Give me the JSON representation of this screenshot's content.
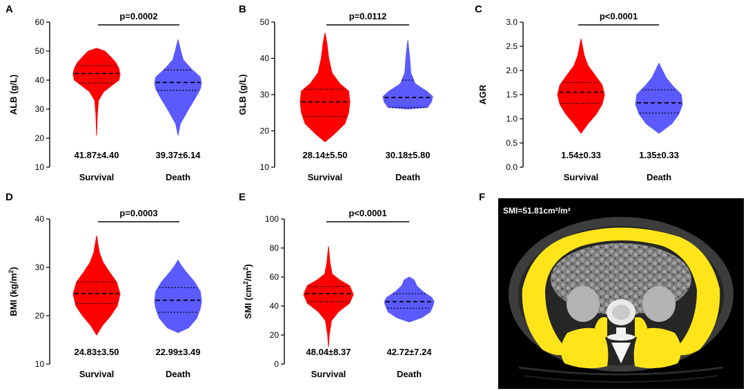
{
  "categories": [
    "Survival",
    "Death"
  ],
  "colors": {
    "survival": "#ff0000",
    "death": "#5a5aff",
    "muscle": "#ffe419"
  },
  "chart_data": [
    {
      "panel": "A",
      "type": "violin",
      "ylabel_main": "ALB (g/L)",
      "ylabel_sup": "",
      "ylabel_end": "",
      "ylim": [
        10,
        60
      ],
      "yticks": [
        10,
        20,
        30,
        40,
        50,
        60
      ],
      "tick_decimals": 0,
      "p_value": "p=0.0002",
      "series": [
        {
          "name": "Survival",
          "stat": "41.87±4.40",
          "min": 21,
          "q1": 39,
          "median": 42.3,
          "q3": 45,
          "max": 51,
          "width_profile": [
            [
              21,
              0
            ],
            [
              28,
              0.03
            ],
            [
              33,
              0.08
            ],
            [
              36,
              0.3
            ],
            [
              38,
              0.62
            ],
            [
              40,
              0.95
            ],
            [
              42,
              1
            ],
            [
              44,
              0.95
            ],
            [
              46,
              0.82
            ],
            [
              48,
              0.6
            ],
            [
              50,
              0.35
            ],
            [
              51,
              0
            ]
          ]
        },
        {
          "name": "Death",
          "stat": "39.37±6.14",
          "min": 21,
          "q1": 36.5,
          "median": 39.2,
          "q3": 43.5,
          "max": 54,
          "width_profile": [
            [
              21,
              0
            ],
            [
              25,
              0.1
            ],
            [
              30,
              0.45
            ],
            [
              34,
              0.75
            ],
            [
              37,
              0.95
            ],
            [
              39,
              1
            ],
            [
              41,
              0.95
            ],
            [
              44,
              0.55
            ],
            [
              47,
              0.22
            ],
            [
              50,
              0.12
            ],
            [
              54,
              0
            ]
          ]
        }
      ]
    },
    {
      "panel": "B",
      "type": "violin",
      "ylabel_main": "GLB (g/L)",
      "ylabel_sup": "",
      "ylabel_end": "",
      "ylim": [
        10,
        50
      ],
      "yticks": [
        10,
        20,
        30,
        40,
        50
      ],
      "tick_decimals": 0,
      "p_value": "p=0.0112",
      "series": [
        {
          "name": "Survival",
          "stat": "28.14±5.50",
          "min": 17,
          "q1": 24,
          "median": 28,
          "q3": 31.5,
          "max": 47,
          "width_profile": [
            [
              17,
              0
            ],
            [
              19,
              0.35
            ],
            [
              22,
              0.8
            ],
            [
              25,
              0.95
            ],
            [
              28,
              1
            ],
            [
              31,
              0.95
            ],
            [
              33,
              0.6
            ],
            [
              36,
              0.28
            ],
            [
              40,
              0.15
            ],
            [
              44,
              0.08
            ],
            [
              47,
              0
            ]
          ]
        },
        {
          "name": "Death",
          "stat": "30.18±5.80",
          "min": 26,
          "q1": 26.5,
          "median": 29.2,
          "q3": 34,
          "max": 45,
          "width_profile": [
            [
              26,
              0
            ],
            [
              26.5,
              0.8
            ],
            [
              28,
              0.95
            ],
            [
              29.5,
              1
            ],
            [
              31,
              0.75
            ],
            [
              33,
              0.3
            ],
            [
              36,
              0.12
            ],
            [
              40,
              0.08
            ],
            [
              45,
              0
            ]
          ]
        }
      ]
    },
    {
      "panel": "C",
      "type": "violin",
      "ylabel_main": "AGR",
      "ylabel_sup": "",
      "ylabel_end": "",
      "ylim": [
        0,
        3
      ],
      "yticks": [
        0,
        0.5,
        1,
        1.5,
        2,
        2.5,
        3
      ],
      "tick_decimals": 1,
      "p_value": "p<0.0001",
      "series": [
        {
          "name": "Survival",
          "stat": "1.54±0.33",
          "min": 0.7,
          "q1": 1.32,
          "median": 1.55,
          "q3": 1.75,
          "max": 2.65,
          "width_profile": [
            [
              0.7,
              0
            ],
            [
              0.9,
              0.3
            ],
            [
              1.1,
              0.65
            ],
            [
              1.3,
              0.9
            ],
            [
              1.5,
              1
            ],
            [
              1.7,
              0.9
            ],
            [
              1.9,
              0.6
            ],
            [
              2.1,
              0.3
            ],
            [
              2.3,
              0.14
            ],
            [
              2.5,
              0.06
            ],
            [
              2.65,
              0
            ]
          ]
        },
        {
          "name": "Death",
          "stat": "1.35±0.33",
          "min": 0.7,
          "q1": 1.12,
          "median": 1.33,
          "q3": 1.6,
          "max": 2.15,
          "width_profile": [
            [
              0.7,
              0
            ],
            [
              0.9,
              0.55
            ],
            [
              1.1,
              0.85
            ],
            [
              1.3,
              1
            ],
            [
              1.5,
              0.95
            ],
            [
              1.7,
              0.55
            ],
            [
              1.85,
              0.3
            ],
            [
              2,
              0.15
            ],
            [
              2.15,
              0
            ]
          ]
        }
      ]
    },
    {
      "panel": "D",
      "type": "violin",
      "ylabel_main": "BMI (kg/m",
      "ylabel_sup": "2",
      "ylabel_end": ")",
      "ylim": [
        10,
        40
      ],
      "yticks": [
        10,
        20,
        30,
        40
      ],
      "tick_decimals": 0,
      "p_value": "p=0.0003",
      "series": [
        {
          "name": "Survival",
          "stat": "24.83±3.50",
          "min": 16,
          "q1": 22.5,
          "median": 24.6,
          "q3": 27,
          "max": 36.5,
          "width_profile": [
            [
              16,
              0
            ],
            [
              18,
              0.25
            ],
            [
              20,
              0.6
            ],
            [
              22,
              0.88
            ],
            [
              24.5,
              1
            ],
            [
              27,
              0.85
            ],
            [
              29,
              0.55
            ],
            [
              31,
              0.28
            ],
            [
              33,
              0.12
            ],
            [
              35,
              0.05
            ],
            [
              36.5,
              0
            ]
          ]
        },
        {
          "name": "Death",
          "stat": "22.99±3.49",
          "min": 16.5,
          "q1": 20.7,
          "median": 23.2,
          "q3": 25.8,
          "max": 31.5,
          "width_profile": [
            [
              16.5,
              0
            ],
            [
              17.5,
              0.45
            ],
            [
              19.5,
              0.8
            ],
            [
              21.5,
              0.95
            ],
            [
              23,
              1
            ],
            [
              25,
              0.95
            ],
            [
              27,
              0.7
            ],
            [
              29,
              0.35
            ],
            [
              30.5,
              0.12
            ],
            [
              31.5,
              0
            ]
          ]
        }
      ]
    },
    {
      "panel": "E",
      "type": "violin",
      "ylabel_main": "SMI (cm",
      "ylabel_sup": "2",
      "ylabel_end": "/m",
      "ylabel_sup2": "2",
      "ylabel_end2": ")",
      "ylim": [
        0,
        100
      ],
      "yticks": [
        0,
        20,
        40,
        60,
        80,
        100
      ],
      "tick_decimals": 0,
      "p_value": "p<0.0001",
      "series": [
        {
          "name": "Survival",
          "stat": "48.04±8.37",
          "min": 12,
          "q1": 43,
          "median": 48.5,
          "q3": 53.5,
          "max": 81,
          "width_profile": [
            [
              12,
              0
            ],
            [
              20,
              0.03
            ],
            [
              30,
              0.12
            ],
            [
              36,
              0.4
            ],
            [
              42,
              0.85
            ],
            [
              48,
              1
            ],
            [
              54,
              0.85
            ],
            [
              58,
              0.45
            ],
            [
              62,
              0.15
            ],
            [
              70,
              0.06
            ],
            [
              81,
              0
            ]
          ]
        },
        {
          "name": "Death",
          "stat": "42.72±7.24",
          "min": 29,
          "q1": 38.5,
          "median": 43,
          "q3": 48.5,
          "max": 60,
          "width_profile": [
            [
              29,
              0
            ],
            [
              32,
              0.5
            ],
            [
              36,
              0.85
            ],
            [
              40,
              0.95
            ],
            [
              43,
              1
            ],
            [
              46,
              0.9
            ],
            [
              50,
              0.55
            ],
            [
              54,
              0.3
            ],
            [
              58,
              0.2
            ],
            [
              60,
              0
            ]
          ]
        }
      ]
    }
  ],
  "ct_panel": {
    "panel": "F",
    "caption": "SMI=51.81cm²/m²"
  }
}
